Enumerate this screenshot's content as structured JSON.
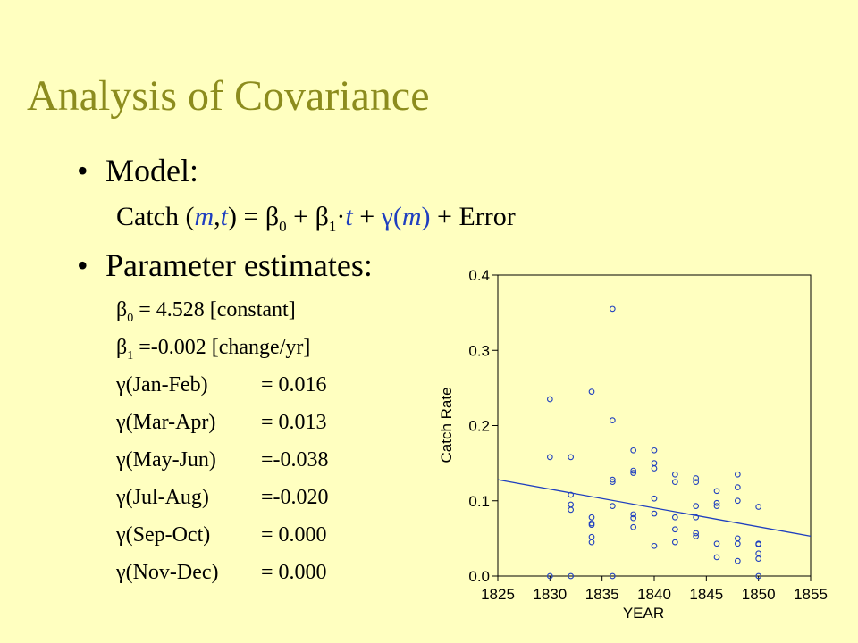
{
  "slide": {
    "title": "Analysis of Covariance",
    "bullet_model": "Model:",
    "model_eq": {
      "catch": "Catch (",
      "m": "m",
      "comma": ",",
      "t": "t",
      "eq": ") = ",
      "beta": "β",
      "b0_sub": "0",
      "plus1": " + ",
      "b1_sub": "1",
      "dot": "·",
      "t2": "t",
      "plus2": " + ",
      "gamma": "γ(",
      "m2": "m",
      "close": ")",
      "error": " + Error"
    },
    "bullet_params": "Parameter estimates:",
    "b0": {
      "sym": "β",
      "sub": "0",
      "text": " = 4.528 [constant]"
    },
    "b1": {
      "sym": "β",
      "sub": "1",
      "text": " =-0.002 [change/yr]"
    },
    "gammas": [
      {
        "label": "γ(Jan-Feb)",
        "value": "= 0.016"
      },
      {
        "label": "γ(Mar-Apr)",
        "value": "= 0.013"
      },
      {
        "label": "γ(May-Jun)",
        "value": "=-0.038"
      },
      {
        "label": "γ(Jul-Aug)",
        "value": "=-0.020"
      },
      {
        "label": "γ(Sep-Oct)",
        "value": "= 0.000"
      },
      {
        "label": "γ(Nov-Dec)",
        "value": "= 0.000"
      }
    ]
  },
  "chart_data": {
    "type": "scatter",
    "xlabel": "YEAR",
    "ylabel": "Catch Rate",
    "xlim": [
      1825,
      1855
    ],
    "ylim": [
      0.0,
      0.4
    ],
    "xticks": [
      "1825",
      "1830",
      "1835",
      "1840",
      "1845",
      "1850",
      "1855"
    ],
    "yticks": [
      "0.0",
      "0.1",
      "0.2",
      "0.3",
      "0.4"
    ],
    "grid": false,
    "point_color": "#1f3fbf",
    "line_color": "#1f3fbf",
    "points": [
      [
        1830,
        0.235
      ],
      [
        1830,
        0.158
      ],
      [
        1830,
        0.0
      ],
      [
        1832,
        0.158
      ],
      [
        1832,
        0.108
      ],
      [
        1832,
        0.095
      ],
      [
        1832,
        0.088
      ],
      [
        1832,
        0.0
      ],
      [
        1834,
        0.245
      ],
      [
        1834,
        0.078
      ],
      [
        1834,
        0.07
      ],
      [
        1834,
        0.068
      ],
      [
        1834,
        0.052
      ],
      [
        1834,
        0.045
      ],
      [
        1836,
        0.355
      ],
      [
        1836,
        0.207
      ],
      [
        1836,
        0.128
      ],
      [
        1836,
        0.125
      ],
      [
        1836,
        0.093
      ],
      [
        1836,
        0.0
      ],
      [
        1838,
        0.167
      ],
      [
        1838,
        0.14
      ],
      [
        1838,
        0.137
      ],
      [
        1838,
        0.082
      ],
      [
        1838,
        0.077
      ],
      [
        1838,
        0.065
      ],
      [
        1840,
        0.167
      ],
      [
        1840,
        0.15
      ],
      [
        1840,
        0.143
      ],
      [
        1840,
        0.103
      ],
      [
        1840,
        0.083
      ],
      [
        1840,
        0.04
      ],
      [
        1842,
        0.135
      ],
      [
        1842,
        0.125
      ],
      [
        1842,
        0.078
      ],
      [
        1842,
        0.062
      ],
      [
        1842,
        0.045
      ],
      [
        1844,
        0.13
      ],
      [
        1844,
        0.125
      ],
      [
        1844,
        0.093
      ],
      [
        1844,
        0.078
      ],
      [
        1844,
        0.057
      ],
      [
        1844,
        0.053
      ],
      [
        1846,
        0.113
      ],
      [
        1846,
        0.097
      ],
      [
        1846,
        0.093
      ],
      [
        1846,
        0.043
      ],
      [
        1846,
        0.025
      ],
      [
        1848,
        0.135
      ],
      [
        1848,
        0.118
      ],
      [
        1848,
        0.1
      ],
      [
        1848,
        0.05
      ],
      [
        1848,
        0.043
      ],
      [
        1848,
        0.02
      ],
      [
        1850,
        0.092
      ],
      [
        1850,
        0.043
      ],
      [
        1850,
        0.042
      ],
      [
        1850,
        0.03
      ],
      [
        1850,
        0.023
      ],
      [
        1850,
        0.0
      ]
    ],
    "fit_line": {
      "x": [
        1825,
        1855
      ],
      "y": [
        0.128,
        0.053
      ]
    }
  }
}
